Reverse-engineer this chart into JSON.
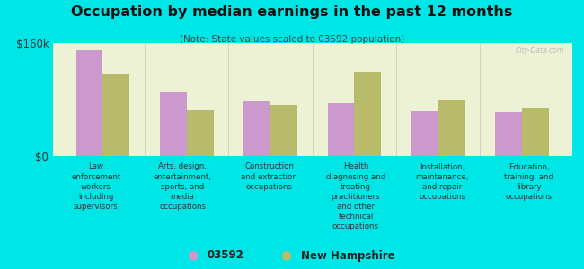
{
  "title": "Occupation by median earnings in the past 12 months",
  "subtitle": "(Note: State values scaled to 03592 population)",
  "background_color": "#00e5e5",
  "plot_bg_gradient_top": "#e8f0d0",
  "plot_bg_gradient_bottom": "#f5f8e8",
  "categories": [
    "Law\nenforcement\nworkers\nincluding\nsupervisors",
    "Arts, design,\nentertainment,\nsports, and\nmedia\noccupations",
    "Construction\nand extraction\noccupations",
    "Health\ndiagnosing and\ntreating\npractitioners\nand other\ntechnical\noccupations",
    "Installation,\nmaintenance,\nand repair\noccupations",
    "Education,\ntraining, and\nlibrary\noccupations"
  ],
  "values_03592": [
    150000,
    90000,
    78000,
    75000,
    63000,
    62000
  ],
  "values_nh": [
    115000,
    65000,
    73000,
    120000,
    80000,
    68000
  ],
  "color_03592": "#cc99cc",
  "color_nh": "#b8bb6a",
  "ylim": [
    0,
    160000
  ],
  "yticks": [
    0,
    160000
  ],
  "ytick_labels": [
    "$0",
    "$160k"
  ],
  "legend_03592": "03592",
  "legend_nh": "New Hampshire",
  "watermark": "City-Data.com"
}
